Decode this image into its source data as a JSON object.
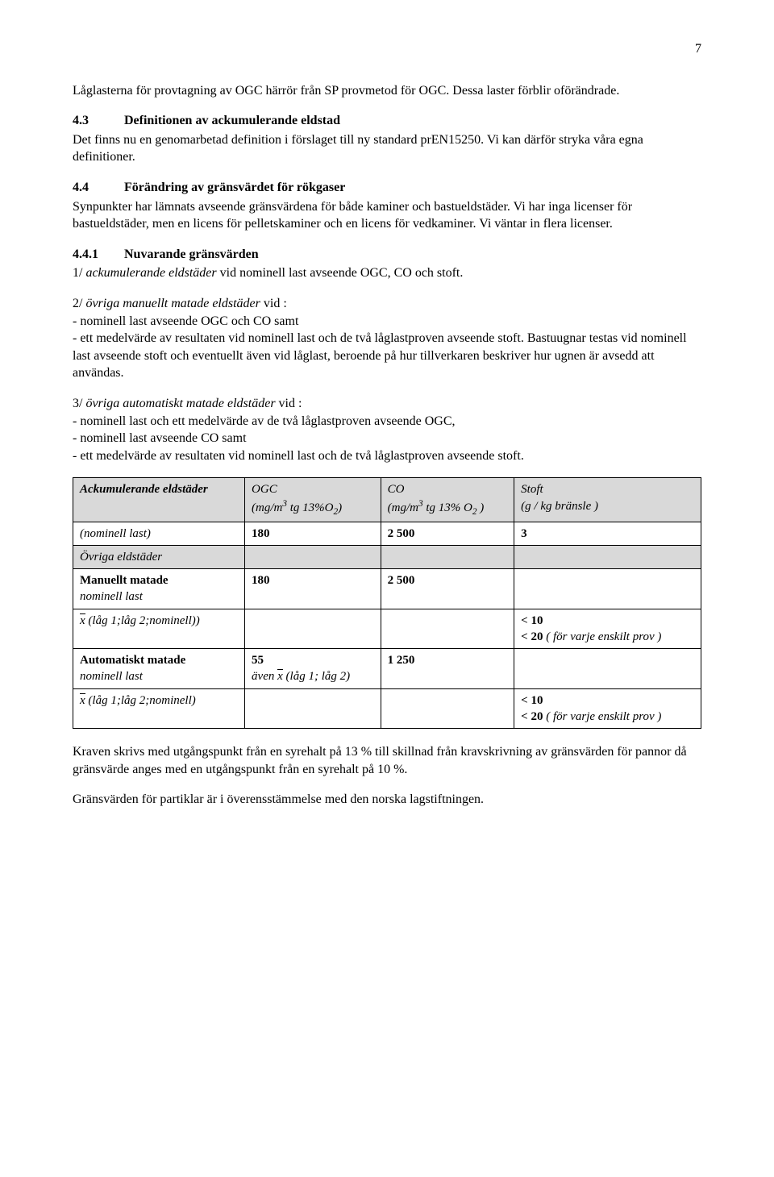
{
  "page_number": "7",
  "p_intro": "Låglasterna för provtagning av OGC härrör från SP provmetod för OGC. Dessa laster förblir oförändrade.",
  "h43_num": "4.3",
  "h43_title": "Definitionen av ackumulerande eldstad",
  "p43": "Det finns nu en genomarbetad definition i förslaget till ny standard prEN15250. Vi kan därför stryka våra egna definitioner.",
  "h44_num": "4.4",
  "h44_title": "Förändring av gränsvärdet för rökgaser",
  "p44a": "Synpunkter har lämnats avseende gränsvärdena för både kaminer och bastueldstäder. Vi har inga licenser för bastueldstäder, men en licens för pelletskaminer och en licens för vedkaminer. Vi väntar in flera licenser.",
  "h441_num": "4.4.1",
  "h441_title": "Nuvarande gränsvärden",
  "p441_1_lead": "1/ ",
  "p441_1_em": "ackumulerande eldstäder",
  "p441_1_tail": " vid nominell last avseende OGC, CO och stoft.",
  "p441_2_lead": "2/ ",
  "p441_2_em": "övriga manuellt matade eldstäder",
  "p441_2_tail": " vid :",
  "p441_2_b1": "- nominell last avseende OGC och CO samt",
  "p441_2_b2": "- ett medelvärde av resultaten vid nominell last och de två låglastproven avseende stoft. Bastuugnar testas vid nominell last avseende stoft och eventuellt även vid låglast, beroende på hur tillverkaren beskriver hur ugnen är avsedd att användas.",
  "p441_3_lead": "3/ ",
  "p441_3_em": "övriga automatiskt matade eldstäder",
  "p441_3_tail": " vid :",
  "p441_3_b1": "- nominell last och ett medelvärde av de två låglastproven avseende OGC,",
  "p441_3_b2": "- nominell last avseende CO samt",
  "p441_3_b3": "- ett medelvärde av resultaten vid nominell last och de två låglastproven avseende stoft.",
  "table": {
    "headers": {
      "c0": "Ackumulerande eldstäder",
      "c1a": "OGC",
      "c1b_pre": "(mg/m",
      "c1b_sup": "3",
      "c1b_mid": " tg 13%O",
      "c1b_sub": "2",
      "c1b_post": ")",
      "c2a": "CO",
      "c2b_pre": "(mg/m",
      "c2b_sup": "3",
      "c2b_mid": " tg 13% O",
      "c2b_sub": "2",
      "c2b_post": " )",
      "c3a": "Stoft",
      "c3b": "(g / kg bränsle )"
    },
    "r_nominell": {
      "c0": "(nominell last)",
      "c1": "180",
      "c2": "2 500",
      "c3": "3"
    },
    "r_ovriga": {
      "c0": "Övriga eldstäder"
    },
    "r_man_head": {
      "c0a": "Manuellt matade",
      "c0b": "nominell last",
      "c1": "180",
      "c2": "2 500"
    },
    "r_man_x": {
      "c0_x": "x",
      "c0_rest": " (låg 1;låg 2;nominell))",
      "c3a": "< 10",
      "c3b": "< 20",
      "c3b_note": " ( för varje enskilt prov )"
    },
    "r_auto_head": {
      "c0a": "Automatiskt matade",
      "c0b": "nominell last",
      "c1": "55",
      "c1b_pre": "även ",
      "c1b_x": "x",
      "c1b_rest": " (låg 1; låg 2)",
      "c2": "1 250"
    },
    "r_auto_x": {
      "c0_x": "x",
      "c0_rest": " (låg 1;låg 2;nominell)",
      "c3a": "< 10",
      "c3b": "< 20",
      "c3b_note": " ( för varje enskilt prov )"
    }
  },
  "p_after1": "Kraven skrivs med utgångspunkt från en syrehalt på 13 % till skillnad från kravskrivning av gränsvärden för pannor då gränsvärde anges med en utgångspunkt från en syrehalt på 10 %.",
  "p_after2": "Gränsvärden för partiklar är i överensstämmelse med den norska lagstiftningen."
}
